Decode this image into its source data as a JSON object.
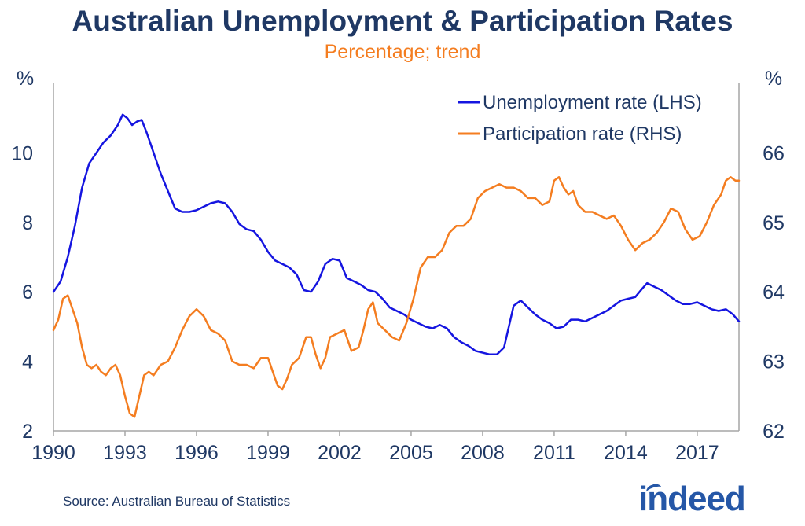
{
  "header": {
    "title": "Australian Unemployment & Participation Rates",
    "subtitle": "Percentage; trend"
  },
  "footer": {
    "source": "Source: Australian Bureau of Statistics",
    "logo_text": "indeed"
  },
  "colors": {
    "title": "#1f3864",
    "unemployment": "#1515e0",
    "participation": "#f47d20",
    "axis_text": "#1f3864",
    "axis_line": "#a6a6a6"
  },
  "chart_data": {
    "type": "line",
    "title": "Australian Unemployment & Participation Rates",
    "subtitle": "Percentage; trend",
    "x_ticks": [
      "1990",
      "1993",
      "1996",
      "1999",
      "2002",
      "2005",
      "2008",
      "2011",
      "2014",
      "2017"
    ],
    "xlim": [
      1990.0,
      2018.75
    ],
    "left_axis": {
      "unit": "%",
      "ylim": [
        2,
        12
      ],
      "ticks": [
        2,
        4,
        6,
        8,
        10
      ]
    },
    "right_axis": {
      "unit": "%",
      "ylim": [
        62,
        67
      ],
      "ticks": [
        62,
        63,
        64,
        65,
        66
      ]
    },
    "legend_position": "top-right",
    "series": [
      {
        "name": "Unemployment rate (LHS)",
        "axis": "left",
        "x": [
          1990.0,
          1990.3,
          1990.6,
          1990.9,
          1991.2,
          1991.5,
          1991.8,
          1992.1,
          1992.4,
          1992.7,
          1992.9,
          1993.1,
          1993.3,
          1993.5,
          1993.7,
          1993.9,
          1994.2,
          1994.5,
          1994.8,
          1995.1,
          1995.4,
          1995.7,
          1996.0,
          1996.3,
          1996.6,
          1996.9,
          1997.2,
          1997.5,
          1997.8,
          1998.1,
          1998.4,
          1998.7,
          1999.0,
          1999.3,
          1999.6,
          1999.9,
          2000.2,
          2000.5,
          2000.8,
          2001.1,
          2001.4,
          2001.7,
          2002.0,
          2002.3,
          2002.6,
          2002.9,
          2003.2,
          2003.5,
          2003.8,
          2004.1,
          2004.4,
          2004.7,
          2005.0,
          2005.3,
          2005.6,
          2005.9,
          2006.2,
          2006.5,
          2006.8,
          2007.1,
          2007.4,
          2007.7,
          2008.0,
          2008.3,
          2008.6,
          2008.9,
          2009.1,
          2009.3,
          2009.6,
          2009.9,
          2010.2,
          2010.5,
          2010.8,
          2011.1,
          2011.4,
          2011.7,
          2012.0,
          2012.3,
          2012.6,
          2012.9,
          2013.2,
          2013.5,
          2013.8,
          2014.1,
          2014.4,
          2014.7,
          2014.9,
          2015.2,
          2015.5,
          2015.8,
          2016.1,
          2016.4,
          2016.7,
          2017.0,
          2017.3,
          2017.6,
          2017.9,
          2018.2,
          2018.5,
          2018.75
        ],
        "values": [
          6.0,
          6.3,
          7.0,
          7.9,
          9.0,
          9.7,
          10.0,
          10.3,
          10.5,
          10.8,
          11.1,
          11.0,
          10.8,
          10.9,
          10.95,
          10.6,
          10.0,
          9.4,
          8.9,
          8.4,
          8.3,
          8.3,
          8.35,
          8.45,
          8.55,
          8.6,
          8.55,
          8.3,
          7.95,
          7.8,
          7.75,
          7.5,
          7.15,
          6.9,
          6.8,
          6.7,
          6.5,
          6.05,
          6.0,
          6.3,
          6.8,
          6.95,
          6.9,
          6.4,
          6.3,
          6.2,
          6.05,
          6.0,
          5.8,
          5.55,
          5.45,
          5.35,
          5.2,
          5.1,
          5.0,
          4.95,
          5.05,
          4.95,
          4.7,
          4.55,
          4.45,
          4.3,
          4.25,
          4.2,
          4.2,
          4.4,
          5.0,
          5.6,
          5.75,
          5.55,
          5.35,
          5.2,
          5.1,
          4.95,
          5.0,
          5.2,
          5.2,
          5.15,
          5.25,
          5.35,
          5.45,
          5.6,
          5.75,
          5.8,
          5.85,
          6.1,
          6.25,
          6.15,
          6.05,
          5.9,
          5.75,
          5.65,
          5.65,
          5.7,
          5.6,
          5.5,
          5.45,
          5.5,
          5.35,
          5.15
        ]
      },
      {
        "name": "Participation rate (RHS)",
        "axis": "right",
        "x": [
          1990.0,
          1990.2,
          1990.4,
          1990.6,
          1990.8,
          1991.0,
          1991.2,
          1991.4,
          1991.6,
          1991.8,
          1992.0,
          1992.2,
          1992.4,
          1992.6,
          1992.8,
          1993.0,
          1993.2,
          1993.4,
          1993.6,
          1993.8,
          1994.0,
          1994.2,
          1994.5,
          1994.8,
          1995.1,
          1995.4,
          1995.7,
          1996.0,
          1996.3,
          1996.6,
          1996.9,
          1997.2,
          1997.5,
          1997.8,
          1998.1,
          1998.4,
          1998.7,
          1999.0,
          1999.2,
          1999.4,
          1999.6,
          1999.8,
          2000.0,
          2000.3,
          2000.6,
          2000.8,
          2001.0,
          2001.2,
          2001.4,
          2001.6,
          2001.9,
          2002.2,
          2002.5,
          2002.8,
          2003.0,
          2003.2,
          2003.4,
          2003.6,
          2003.9,
          2004.2,
          2004.5,
          2004.8,
          2005.1,
          2005.4,
          2005.7,
          2006.0,
          2006.3,
          2006.6,
          2006.9,
          2007.2,
          2007.5,
          2007.8,
          2008.1,
          2008.4,
          2008.7,
          2009.0,
          2009.3,
          2009.6,
          2009.9,
          2010.2,
          2010.5,
          2010.8,
          2011.0,
          2011.2,
          2011.4,
          2011.6,
          2011.8,
          2012.0,
          2012.3,
          2012.6,
          2012.9,
          2013.2,
          2013.5,
          2013.8,
          2014.1,
          2014.4,
          2014.7,
          2015.0,
          2015.3,
          2015.6,
          2015.9,
          2016.2,
          2016.5,
          2016.8,
          2017.1,
          2017.4,
          2017.7,
          2018.0,
          2018.2,
          2018.4,
          2018.6,
          2018.75
        ],
        "values": [
          63.45,
          63.6,
          63.9,
          63.95,
          63.75,
          63.55,
          63.2,
          62.95,
          62.9,
          62.95,
          62.85,
          62.8,
          62.9,
          62.95,
          62.8,
          62.5,
          62.25,
          62.2,
          62.5,
          62.8,
          62.85,
          62.8,
          62.95,
          63.0,
          63.2,
          63.45,
          63.65,
          63.75,
          63.65,
          63.45,
          63.4,
          63.3,
          63.0,
          62.95,
          62.95,
          62.9,
          63.05,
          63.05,
          62.85,
          62.65,
          62.6,
          62.75,
          62.95,
          63.05,
          63.35,
          63.35,
          63.1,
          62.9,
          63.05,
          63.35,
          63.4,
          63.45,
          63.15,
          63.2,
          63.45,
          63.75,
          63.85,
          63.55,
          63.45,
          63.35,
          63.3,
          63.55,
          63.9,
          64.35,
          64.5,
          64.5,
          64.6,
          64.85,
          64.95,
          64.95,
          65.05,
          65.35,
          65.45,
          65.5,
          65.55,
          65.5,
          65.5,
          65.45,
          65.35,
          65.35,
          65.25,
          65.3,
          65.6,
          65.65,
          65.5,
          65.4,
          65.45,
          65.25,
          65.15,
          65.15,
          65.1,
          65.05,
          65.1,
          64.95,
          64.75,
          64.6,
          64.7,
          64.75,
          64.85,
          65.0,
          65.2,
          65.15,
          64.9,
          64.75,
          64.8,
          65.0,
          65.25,
          65.4,
          65.6,
          65.65,
          65.6,
          65.6
        ]
      }
    ]
  }
}
